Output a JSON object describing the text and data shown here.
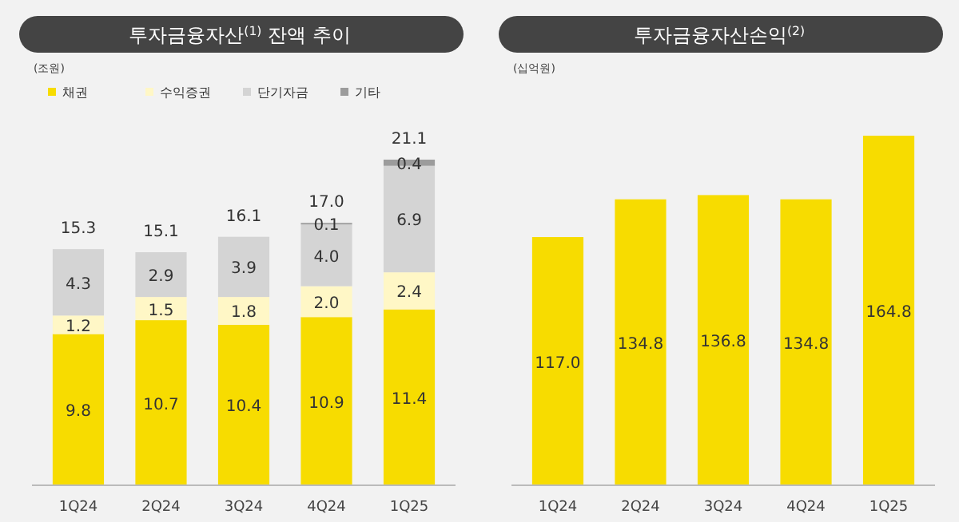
{
  "chart_data": [
    {
      "type": "bar",
      "title": "투자금융자산$^{(1)}$ 잔액 추이",
      "ylabel": "(조원)",
      "stacked": true,
      "legend": "top left",
      "tick_labels": "x",
      "categories": [
        "1Q24",
        "2Q24",
        "3Q24",
        "4Q24",
        "1Q25"
      ],
      "series": [
        {
          "name": "채권",
          "color": "#f7dc00",
          "values": [
            9.8,
            10.7,
            10.4,
            10.9,
            11.4
          ],
          "value_labels": [
            "9.8",
            "10.7",
            "10.4",
            "10.9",
            "11.4"
          ]
        },
        {
          "name": "수익증권",
          "color": "#fff7c6",
          "values": [
            1.2,
            1.5,
            1.8,
            2.0,
            2.4
          ],
          "value_labels": [
            "1.2",
            "1.5",
            "1.8",
            "2.0",
            "2.4"
          ]
        },
        {
          "name": "단기자금",
          "color": "#d4d4d4",
          "values": [
            4.3,
            2.9,
            3.9,
            4.0,
            6.9
          ],
          "value_labels": [
            "4.3",
            "2.9",
            "3.9",
            "4.0",
            "6.9"
          ]
        },
        {
          "name": "기타",
          "color": "#9c9c9c",
          "values": [
            null,
            null,
            null,
            0.1,
            0.4
          ],
          "value_labels": [
            null,
            null,
            null,
            "0.1",
            "0.4"
          ]
        }
      ],
      "totals": [
        "15.3",
        "15.1",
        "16.1",
        "17.0",
        "21.1"
      ]
    },
    {
      "type": "bar",
      "title": "투자금융자산손익$^{(2)}$",
      "ylabel": "(십억원)",
      "tick_labels": "x",
      "categories": [
        "1Q24",
        "2Q24",
        "3Q24",
        "4Q24",
        "1Q25"
      ],
      "color": "#f7dc00",
      "values": [
        117.0,
        134.8,
        136.8,
        134.8,
        164.8
      ],
      "value_labels": [
        "117.0",
        "134.8",
        "136.8",
        "134.8",
        "164.8"
      ]
    }
  ]
}
